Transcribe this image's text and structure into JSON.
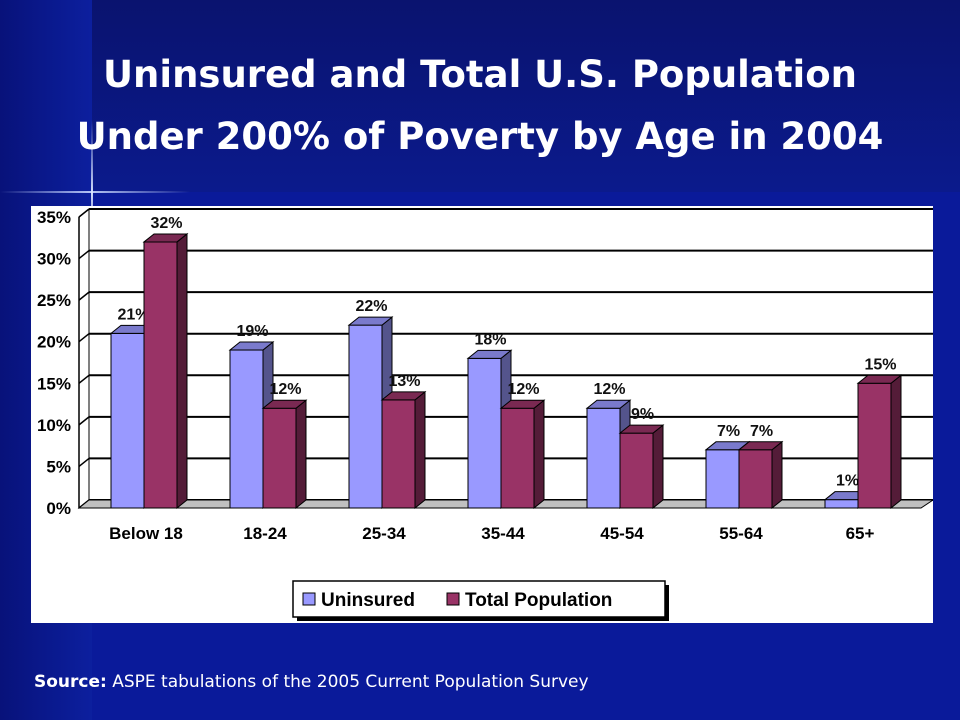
{
  "title_line1": "Uninsured and Total U.S. Population",
  "title_line2": "Under 200% of Poverty by Age in 2004",
  "source_label": "Source:",
  "source_text": "ASPE tabulations of the 2005 Current Population Survey",
  "colors": {
    "uninsured": "#9999ff",
    "total_population": "#993366"
  },
  "chart_data": {
    "type": "bar",
    "title": "",
    "xlabel": "",
    "ylabel": "",
    "ylim": [
      0,
      35
    ],
    "yticks": [
      "0%",
      "5%",
      "10%",
      "15%",
      "20%",
      "25%",
      "30%",
      "35%"
    ],
    "grid": true,
    "legend_position": "bottom",
    "categories": [
      "Below 18",
      "18-24",
      "25-34",
      "35-44",
      "45-54",
      "55-64",
      "65+"
    ],
    "series": [
      {
        "name": "Uninsured",
        "values": [
          21,
          19,
          22,
          18,
          12,
          7,
          1
        ],
        "labels": [
          "21%",
          "19%",
          "22%",
          "18%",
          "12%",
          "7%",
          "1%"
        ]
      },
      {
        "name": "Total Population",
        "values": [
          32,
          12,
          13,
          12,
          9,
          7,
          15
        ],
        "labels": [
          "32%",
          "12%",
          "13%",
          "12%",
          "9%",
          "7%",
          "15%"
        ]
      }
    ]
  }
}
